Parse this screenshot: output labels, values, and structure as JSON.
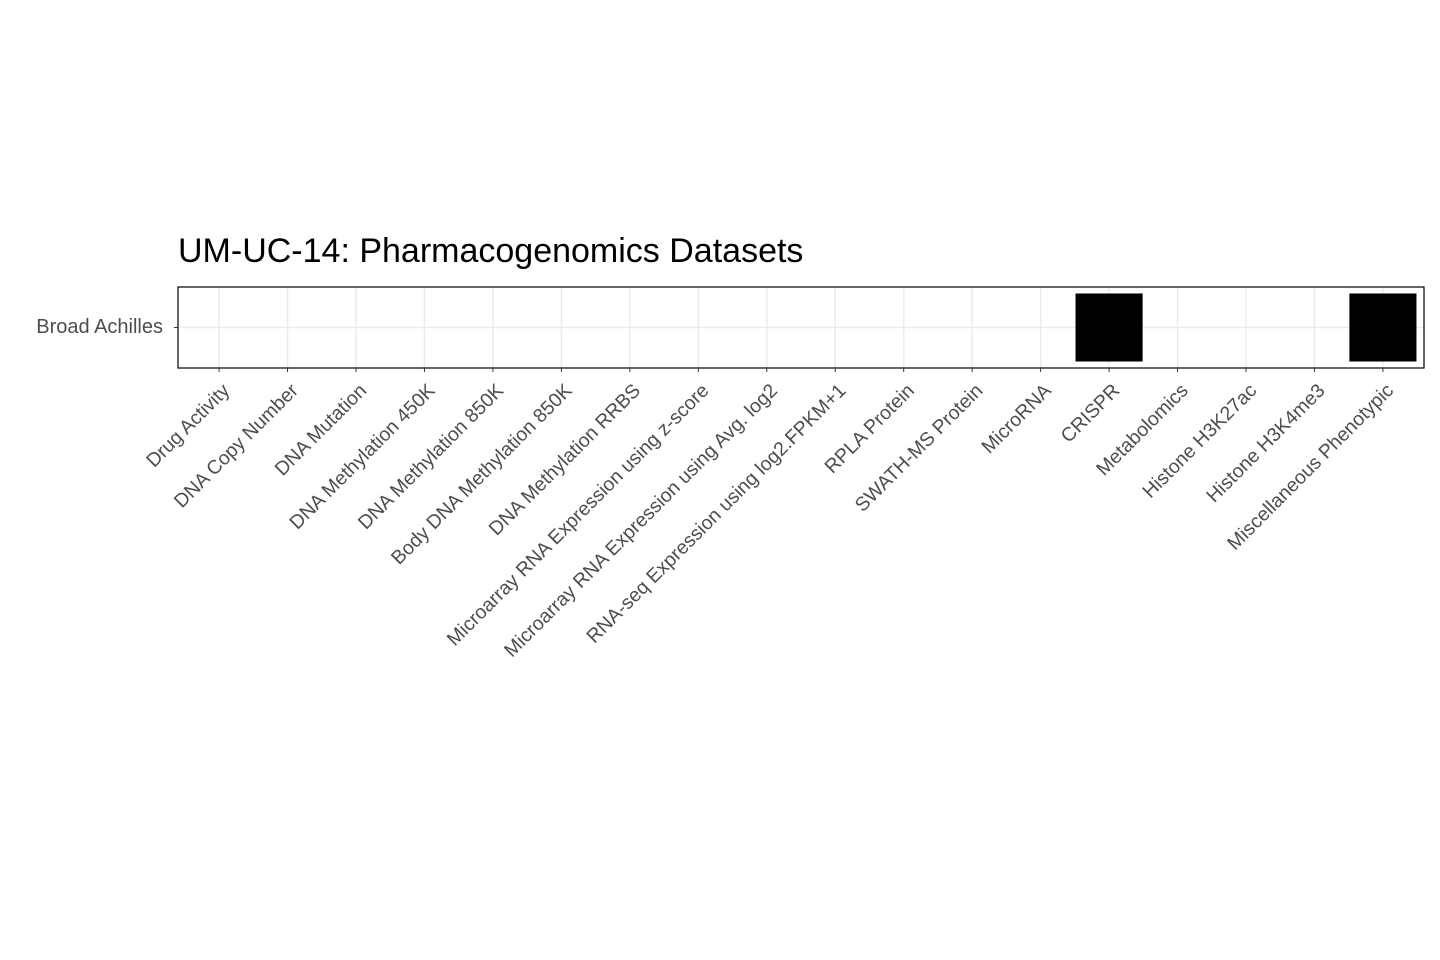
{
  "chart_data": {
    "type": "tile",
    "title": "UM-UC-14: Pharmacogenomics Datasets",
    "categories": [
      "Drug Activity",
      "DNA Copy Number",
      "DNA Mutation",
      "DNA Methylation 450K",
      "DNA Methylation 850K",
      "Body DNA Methylation 850K",
      "DNA Methylation RRBS",
      "Microarray RNA Expression using z-score",
      "Microarray RNA Expression using Avg. log2",
      "RNA-seq Expression using log2.FPKM+1",
      "RPLA Protein",
      "SWATH-MS Protein",
      "MicroRNA",
      "CRISPR",
      "Metabolomics",
      "Histone H3K27ac",
      "Histone H3K4me3",
      "Miscellaneous Phenotypic"
    ],
    "rows": [
      "Broad Achilles"
    ],
    "values": [
      [
        0,
        0,
        0,
        0,
        0,
        0,
        0,
        0,
        0,
        0,
        0,
        0,
        0,
        1,
        0,
        0,
        0,
        1
      ]
    ],
    "color": "#000000",
    "grid": true
  }
}
